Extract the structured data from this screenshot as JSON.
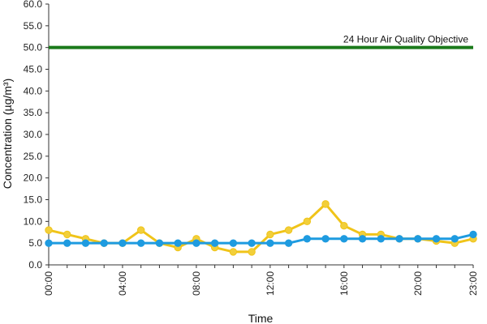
{
  "chart_data": {
    "type": "line",
    "xlabel": "Time",
    "ylabel": "Concentration (µg/m³)",
    "ylim": [
      0,
      60
    ],
    "yticks": [
      "0.0",
      "5.0",
      "10.0",
      "15.0",
      "20.0",
      "25.0",
      "30.0",
      "35.0",
      "40.0",
      "45.0",
      "50.0",
      "55.0",
      "60.0"
    ],
    "x": [
      "00:00",
      "01:00",
      "02:00",
      "03:00",
      "04:00",
      "05:00",
      "06:00",
      "07:00",
      "08:00",
      "09:00",
      "10:00",
      "11:00",
      "12:00",
      "13:00",
      "14:00",
      "15:00",
      "16:00",
      "17:00",
      "18:00",
      "19:00",
      "20:00",
      "21:00",
      "22:00",
      "23:00"
    ],
    "xtick_labels": [
      "00:00",
      "04:00",
      "08:00",
      "12:00",
      "16:00",
      "20:00",
      "23:00"
    ],
    "grid": false,
    "series": [
      {
        "color": "#f0c419",
        "marker_color": "#f2cf3a",
        "values": [
          8,
          7,
          6,
          5,
          5,
          8,
          5,
          4,
          6,
          4,
          3,
          3,
          7,
          8,
          10,
          14,
          9,
          7,
          7,
          6,
          6,
          5.5,
          5,
          6
        ]
      },
      {
        "color": "#1e9be0",
        "marker_color": "#1e9be0",
        "values": [
          5,
          5,
          5,
          5,
          5,
          5,
          5,
          5,
          5,
          5,
          5,
          5,
          5,
          5,
          6,
          6,
          6,
          6,
          6,
          6,
          6,
          6,
          6,
          7
        ]
      }
    ],
    "reference_line": {
      "value": 50,
      "label": "24 Hour Air Quality Objective",
      "color": "#1a7a1a"
    }
  }
}
